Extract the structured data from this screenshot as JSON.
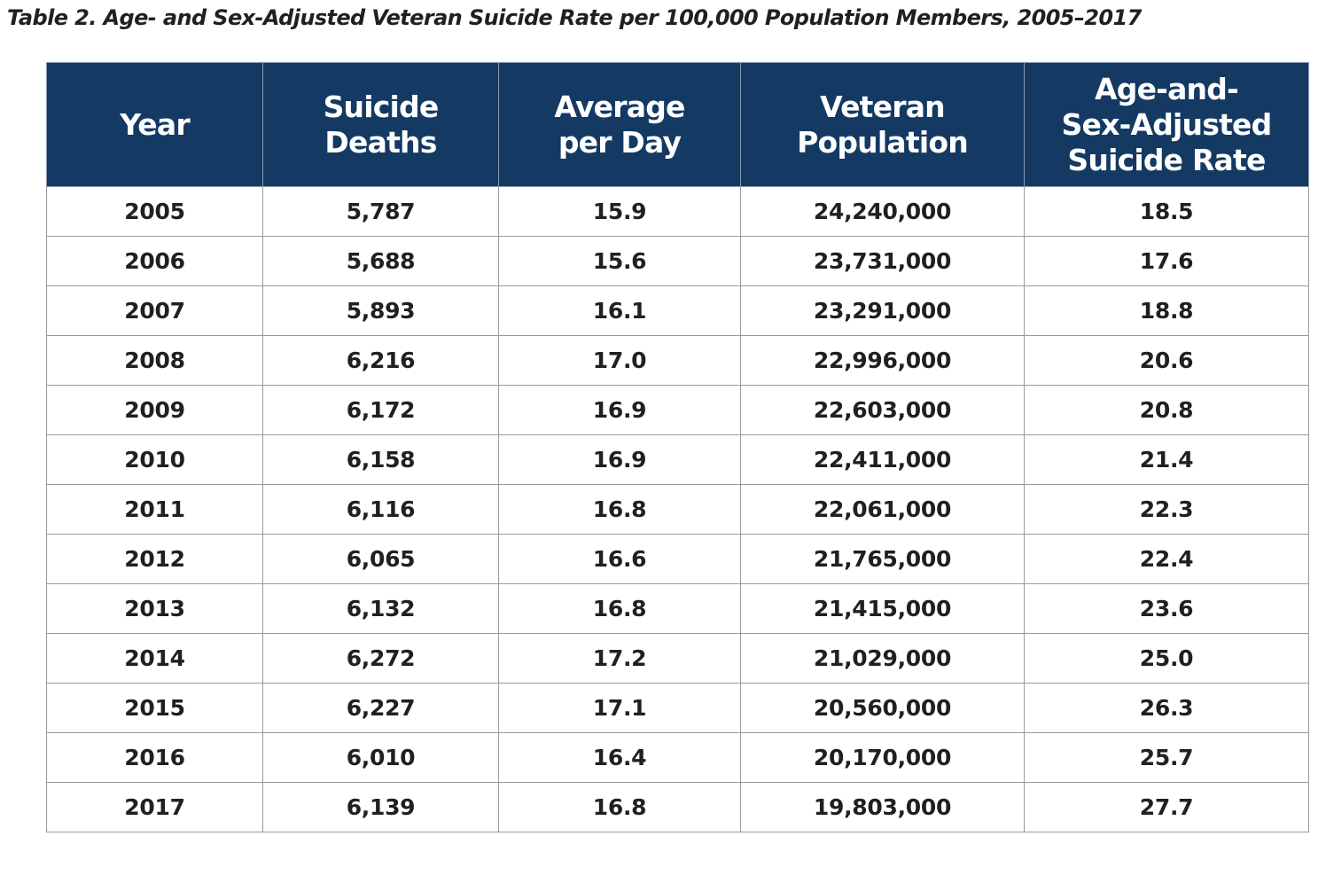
{
  "caption": "Table 2. Age- and Sex-Adjusted Veteran Suicide Rate per 100,000 Population Members, 2005–2017",
  "headers": [
    [
      "Year"
    ],
    [
      "Suicide",
      "Deaths"
    ],
    [
      "Average",
      "per Day"
    ],
    [
      "Veteran",
      "Population"
    ],
    [
      "Age-and-",
      "Sex-Adjusted",
      "Suicide Rate"
    ]
  ],
  "rows": [
    [
      "2005",
      "5,787",
      "15.9",
      "24,240,000",
      "18.5"
    ],
    [
      "2006",
      "5,688",
      "15.6",
      "23,731,000",
      "17.6"
    ],
    [
      "2007",
      "5,893",
      "16.1",
      "23,291,000",
      "18.8"
    ],
    [
      "2008",
      "6,216",
      "17.0",
      "22,996,000",
      "20.6"
    ],
    [
      "2009",
      "6,172",
      "16.9",
      "22,603,000",
      "20.8"
    ],
    [
      "2010",
      "6,158",
      "16.9",
      "22,411,000",
      "21.4"
    ],
    [
      "2011",
      "6,116",
      "16.8",
      "22,061,000",
      "22.3"
    ],
    [
      "2012",
      "6,065",
      "16.6",
      "21,765,000",
      "22.4"
    ],
    [
      "2013",
      "6,132",
      "16.8",
      "21,415,000",
      "23.6"
    ],
    [
      "2014",
      "6,272",
      "17.2",
      "21,029,000",
      "25.0"
    ],
    [
      "2015",
      "6,227",
      "17.1",
      "20,560,000",
      "26.3"
    ],
    [
      "2016",
      "6,010",
      "16.4",
      "20,170,000",
      "25.7"
    ],
    [
      "2017",
      "6,139",
      "16.8",
      "19,803,000",
      "27.7"
    ]
  ],
  "colors": {
    "header_bg": "#143a63",
    "header_text": "#ffffff",
    "body_text": "#231f20",
    "grid": "#9a9a9a"
  }
}
